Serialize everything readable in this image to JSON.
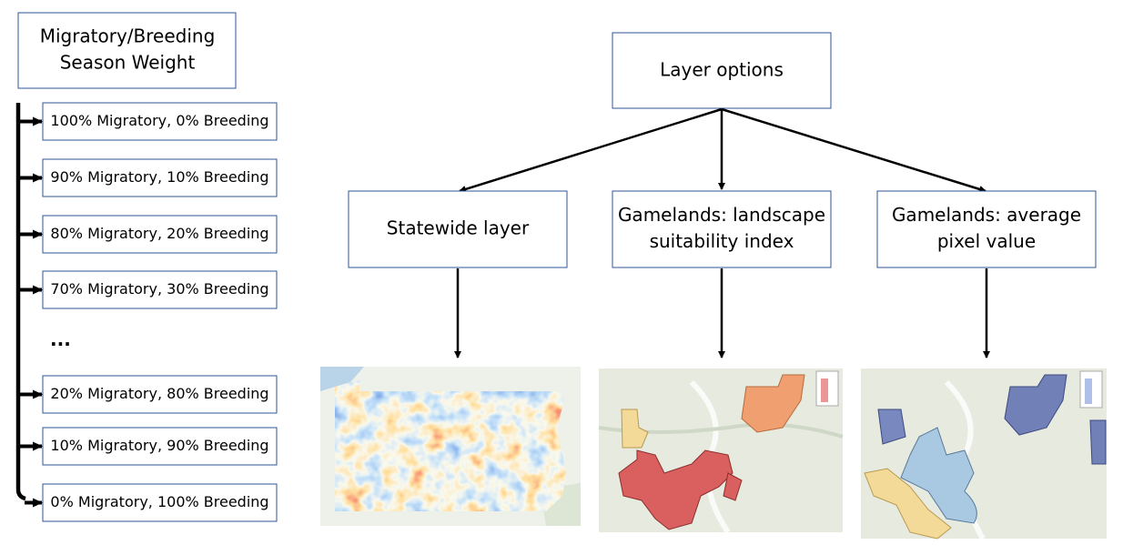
{
  "weight_box": {
    "lines": [
      "Migratory/Breeding",
      "Season Weight"
    ]
  },
  "weights": [
    "100% Migratory, 0% Breeding",
    "90% Migratory, 10% Breeding",
    "80% Migratory, 20% Breeding",
    "70% Migratory, 30% Breeding",
    "20% Migratory, 80% Breeding",
    "10% Migratory, 90% Breeding",
    "0% Migratory, 100% Breeding"
  ],
  "ellipsis": "...",
  "layer_options": {
    "title": "Layer options"
  },
  "layers": [
    {
      "lines": [
        "Statewide layer"
      ]
    },
    {
      "lines": [
        "Gamelands: landscape",
        "suitability index"
      ]
    },
    {
      "lines": [
        "Gamelands: average",
        "pixel value"
      ]
    }
  ]
}
